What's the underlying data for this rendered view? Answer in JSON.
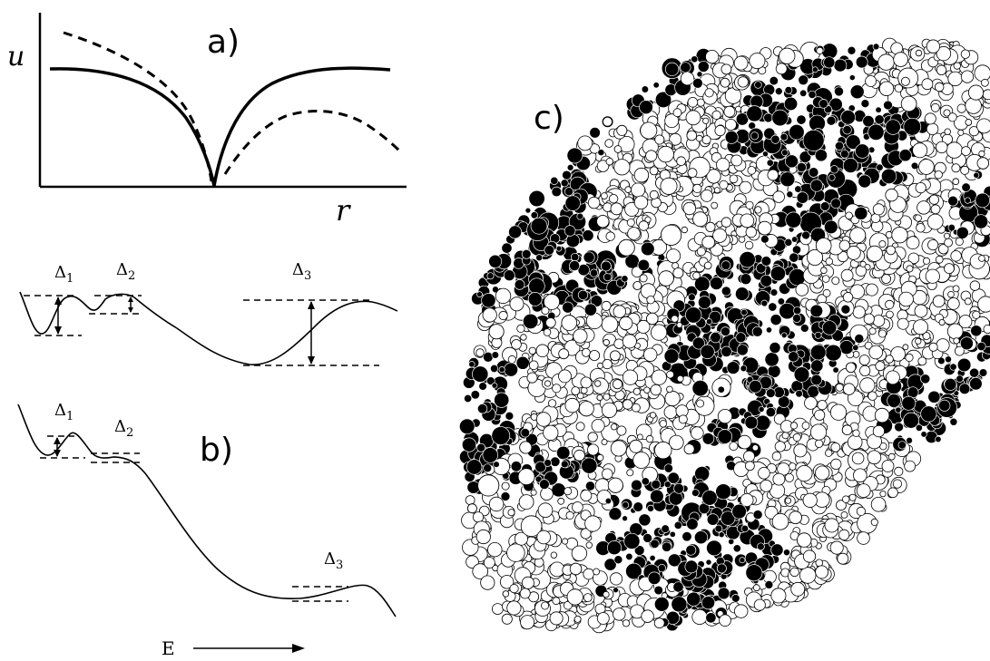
{
  "panel_a": {
    "label": "a)",
    "y_axis_symbol": "u",
    "x_axis_symbol": "r"
  },
  "panel_b": {
    "label": "b)",
    "top_curve": {
      "delta_1": {
        "base": "Δ",
        "sub": "1"
      },
      "delta_2": {
        "base": "Δ",
        "sub": "2"
      },
      "delta_3": {
        "base": "Δ",
        "sub": "3"
      }
    },
    "bottom_curve": {
      "delta_1": {
        "base": "Δ",
        "sub": "1"
      },
      "delta_2": {
        "base": "Δ",
        "sub": "2"
      },
      "delta_3": {
        "base": "Δ",
        "sub": "3"
      }
    },
    "axis_label": "E"
  },
  "panel_c": {
    "label": "c)",
    "dark_color": "#000000",
    "light_color": "#ffffff"
  }
}
